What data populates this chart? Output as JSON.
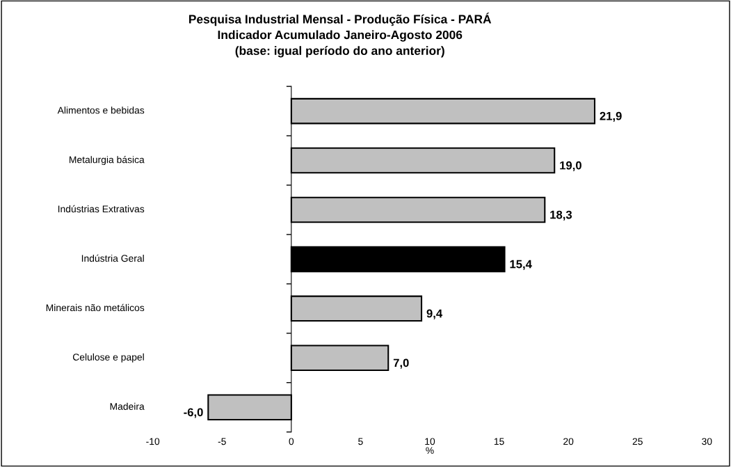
{
  "chart_data": {
    "type": "bar",
    "orientation": "horizontal",
    "title": "Pesquisa Industrial Mensal - Produção Física - PARÁ\nIndicador Acumulado Janeiro-Agosto 2006\n(base: igual período do ano anterior)",
    "xlabel": "%",
    "categories": [
      "Alimentos e bebidas",
      "Metalurgia básica",
      "Indústrias Extrativas",
      "Indústria Geral",
      "Minerais não metálicos",
      "Celulose e papel",
      "Madeira"
    ],
    "values": [
      21.9,
      19.0,
      18.3,
      15.4,
      9.4,
      7.0,
      -6.0
    ],
    "colors": [
      "#c0c0c0",
      "#c0c0c0",
      "#c0c0c0",
      "#000000",
      "#c0c0c0",
      "#c0c0c0",
      "#c0c0c0"
    ],
    "value_labels": [
      "21,9",
      "19,0",
      "18,3",
      "15,4",
      "9,4",
      "7,0",
      "-6,0"
    ],
    "xlim": [
      -10,
      30
    ],
    "xticks": [
      -10,
      -5,
      0,
      5,
      10,
      15,
      20,
      25,
      30
    ]
  }
}
